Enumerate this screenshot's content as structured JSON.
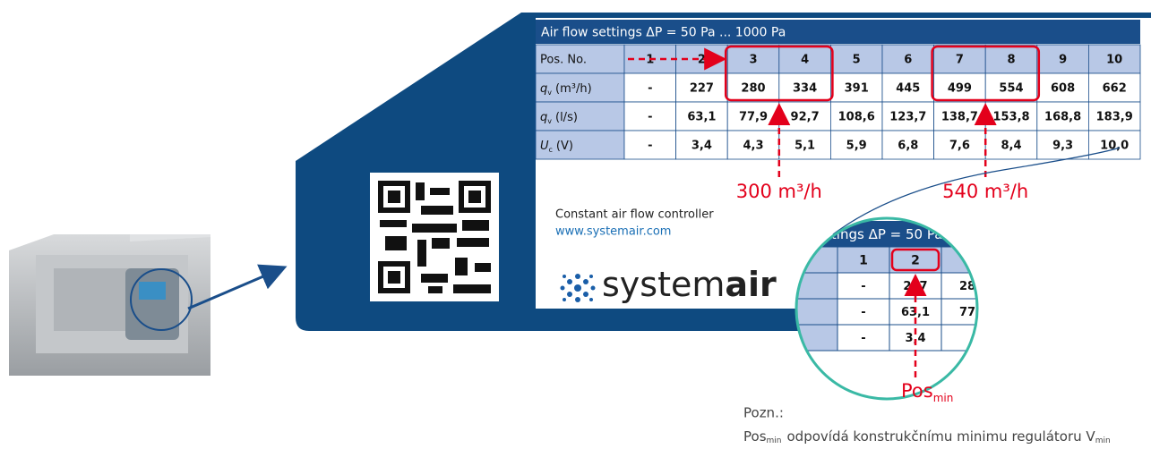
{
  "table": {
    "title": "Air flow settings ΔP = 50 Pa ... 1000 Pa",
    "header": [
      "Pos. No.",
      "1",
      "2",
      "3",
      "4",
      "5",
      "6",
      "7",
      "8",
      "9",
      "10"
    ],
    "rows": [
      {
        "symbol": "q",
        "sub": "v",
        "unit": "(m³/h)",
        "cells": [
          "-",
          "227",
          "280",
          "334",
          "391",
          "445",
          "499",
          "554",
          "608",
          "662"
        ]
      },
      {
        "symbol": "q",
        "sub": "v",
        "unit": "(l/s)",
        "cells": [
          "-",
          "63,1",
          "77,9",
          "92,7",
          "108,6",
          "123,7",
          "138,7",
          "153,8",
          "168,8",
          "183,9"
        ]
      },
      {
        "symbol": "U",
        "sub": "c",
        "unit": "(V)",
        "cells": [
          "-",
          "3,4",
          "4,3",
          "5,1",
          "5,9",
          "6,8",
          "7,6",
          "8,4",
          "9,3",
          "10,0"
        ]
      }
    ]
  },
  "annotations": [
    "300 m³/h",
    "540 m³/h"
  ],
  "product": {
    "name": "Constant air flow controller",
    "url": "www.systemair.com",
    "logo": {
      "light": "system",
      "bold": "air"
    }
  },
  "zoom": {
    "title": "settings ΔP = 50 Pa ...",
    "header": [
      "o.",
      "1",
      "2"
    ],
    "rows": [
      {
        "label": "³/h)",
        "cells": [
          "-",
          "227",
          "28"
        ]
      },
      {
        "label": "s)",
        "cells": [
          "-",
          "63,1",
          "77"
        ]
      },
      {
        "cells": [
          "-",
          "3,4"
        ]
      }
    ],
    "marker": {
      "text": "Pos",
      "sub": "min"
    }
  },
  "note": {
    "heading": "Pozn.:",
    "pos": "Pos",
    "pos_sub": "min",
    "text": "odpovídá konstrukčnímu minimu regulátoru V",
    "v_sub": "min"
  }
}
